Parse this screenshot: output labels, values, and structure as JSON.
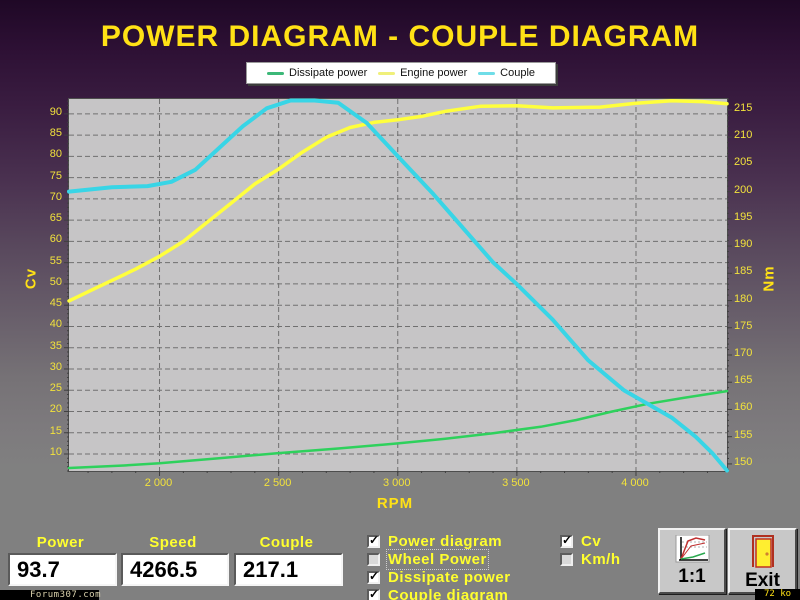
{
  "title": "POWER DIAGRAM - COUPLE DIAGRAM",
  "legend": {
    "items": [
      {
        "label": "Dissipate power",
        "color": "#3cb878"
      },
      {
        "label": "Engine power",
        "color": "#f0f07a"
      },
      {
        "label": "Couple",
        "color": "#6fdde8"
      }
    ]
  },
  "chart_data": {
    "type": "line",
    "xlabel": "RPM",
    "ylabel_left": "Cv",
    "ylabel_right": "Nm",
    "grid": true,
    "xlim": [
      1620,
      4382
    ],
    "left_ylim": [
      6.0,
      93.5
    ],
    "right_ylim": [
      148.7,
      217.0
    ],
    "x_ticks": [
      2000,
      2500,
      3000,
      3500,
      4000
    ],
    "x_tick_labels": [
      "2 000",
      "2 500",
      "3 000",
      "3 500",
      "4 000"
    ],
    "left_ticks": [
      90,
      85,
      80,
      75,
      70,
      65,
      60,
      55,
      50,
      45,
      40,
      35,
      30,
      25,
      20,
      15,
      10
    ],
    "right_ticks": [
      215,
      210,
      205,
      200,
      195,
      190,
      185,
      180,
      175,
      170,
      165,
      160,
      155,
      150
    ],
    "series": [
      {
        "name": "Dissipate power",
        "axis": "left",
        "color": "#2ed15c",
        "width": 2.5,
        "points": [
          [
            1620,
            6.7
          ],
          [
            1850,
            7.3
          ],
          [
            2000,
            7.8
          ],
          [
            2250,
            9.0
          ],
          [
            2500,
            10.2
          ],
          [
            2750,
            11.3
          ],
          [
            3000,
            12.5
          ],
          [
            3200,
            13.6
          ],
          [
            3400,
            14.9
          ],
          [
            3600,
            16.4
          ],
          [
            3750,
            18.0
          ],
          [
            3900,
            20.0
          ],
          [
            4050,
            21.8
          ],
          [
            4200,
            23.2
          ],
          [
            4382,
            24.8
          ]
        ]
      },
      {
        "name": "Engine power",
        "axis": "left",
        "color": "#ffff3c",
        "width": 3.5,
        "points": [
          [
            1620,
            46.0
          ],
          [
            1750,
            49.5
          ],
          [
            1900,
            53.5
          ],
          [
            2000,
            56.5
          ],
          [
            2100,
            60.0
          ],
          [
            2200,
            64.5
          ],
          [
            2300,
            69.0
          ],
          [
            2400,
            73.5
          ],
          [
            2500,
            77.0
          ],
          [
            2600,
            81.0
          ],
          [
            2700,
            84.5
          ],
          [
            2800,
            86.8
          ],
          [
            2900,
            88.0
          ],
          [
            3000,
            88.6
          ],
          [
            3100,
            89.4
          ],
          [
            3200,
            90.6
          ],
          [
            3350,
            91.8
          ],
          [
            3500,
            91.9
          ],
          [
            3650,
            91.4
          ],
          [
            3850,
            91.6
          ],
          [
            4000,
            92.5
          ],
          [
            4150,
            93.1
          ],
          [
            4280,
            92.9
          ],
          [
            4382,
            92.4
          ]
        ]
      },
      {
        "name": "Couple",
        "axis": "right",
        "color": "#38d5e6",
        "width": 4,
        "points": [
          [
            1620,
            200.0
          ],
          [
            1800,
            200.8
          ],
          [
            1950,
            201.0
          ],
          [
            2050,
            201.8
          ],
          [
            2150,
            204.0
          ],
          [
            2250,
            208.0
          ],
          [
            2350,
            212.0
          ],
          [
            2450,
            215.3
          ],
          [
            2550,
            216.9
          ],
          [
            2650,
            217.1
          ],
          [
            2750,
            216.3
          ],
          [
            2870,
            212.6
          ],
          [
            3000,
            206.5
          ],
          [
            3150,
            199.5
          ],
          [
            3250,
            194.5
          ],
          [
            3400,
            187.0
          ],
          [
            3500,
            183.0
          ],
          [
            3650,
            176.5
          ],
          [
            3800,
            169.0
          ],
          [
            3950,
            163.5
          ],
          [
            4050,
            161.0
          ],
          [
            4150,
            158.5
          ],
          [
            4250,
            155.0
          ],
          [
            4320,
            152.0
          ],
          [
            4382,
            148.8
          ]
        ]
      }
    ]
  },
  "readouts": [
    {
      "label": "Power",
      "value": "93.7"
    },
    {
      "label": "Speed",
      "value": "4266.5"
    },
    {
      "label": "Couple",
      "value": "217.1"
    }
  ],
  "checkboxes_left": [
    {
      "label": "Power diagram",
      "checked": true,
      "focused": false
    },
    {
      "label": "Wheel Power",
      "checked": false,
      "focused": true
    },
    {
      "label": "Dissipate power",
      "checked": true,
      "focused": false
    },
    {
      "label": "Couple diagram",
      "checked": true,
      "focused": false
    }
  ],
  "checkboxes_right": [
    {
      "label": "Cv",
      "checked": true,
      "focused": false
    },
    {
      "label": "Km/h",
      "checked": false,
      "focused": false
    }
  ],
  "buttons": [
    {
      "label": "1:1",
      "icon": "scale-chart-icon"
    },
    {
      "label": "Exit",
      "icon": "door-icon"
    }
  ],
  "footer": {
    "left": "Forum307.com",
    "right": "72 ko"
  }
}
